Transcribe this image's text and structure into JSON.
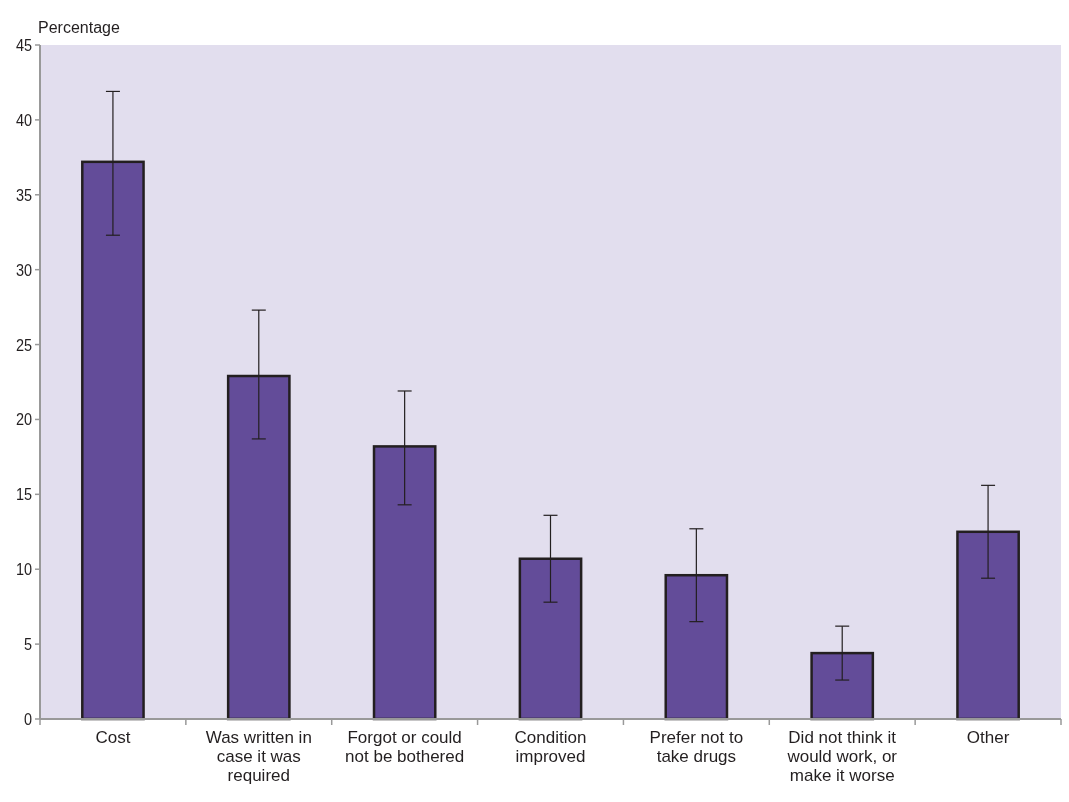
{
  "chart_data": {
    "type": "bar",
    "ylabel": "Percentage",
    "categories": [
      "Cost",
      "Was written in case it was required",
      "Forgot or could not be bothered",
      "Condition improved",
      "Prefer not to take drugs",
      "Did not think it would work, or make it worse",
      "Other"
    ],
    "values": [
      37.2,
      22.9,
      18.2,
      10.7,
      9.6,
      4.4,
      12.5
    ],
    "errors": [
      [
        32.3,
        41.9
      ],
      [
        18.7,
        27.3
      ],
      [
        14.3,
        21.9
      ],
      [
        7.8,
        13.6
      ],
      [
        6.5,
        12.7
      ],
      [
        2.6,
        6.2
      ],
      [
        9.4,
        15.6
      ]
    ],
    "color": "#634c99",
    "ylim": [
      0,
      45
    ],
    "yticks": [
      0,
      5,
      10,
      15,
      20,
      25,
      30,
      35,
      40,
      45
    ],
    "grid": false
  }
}
